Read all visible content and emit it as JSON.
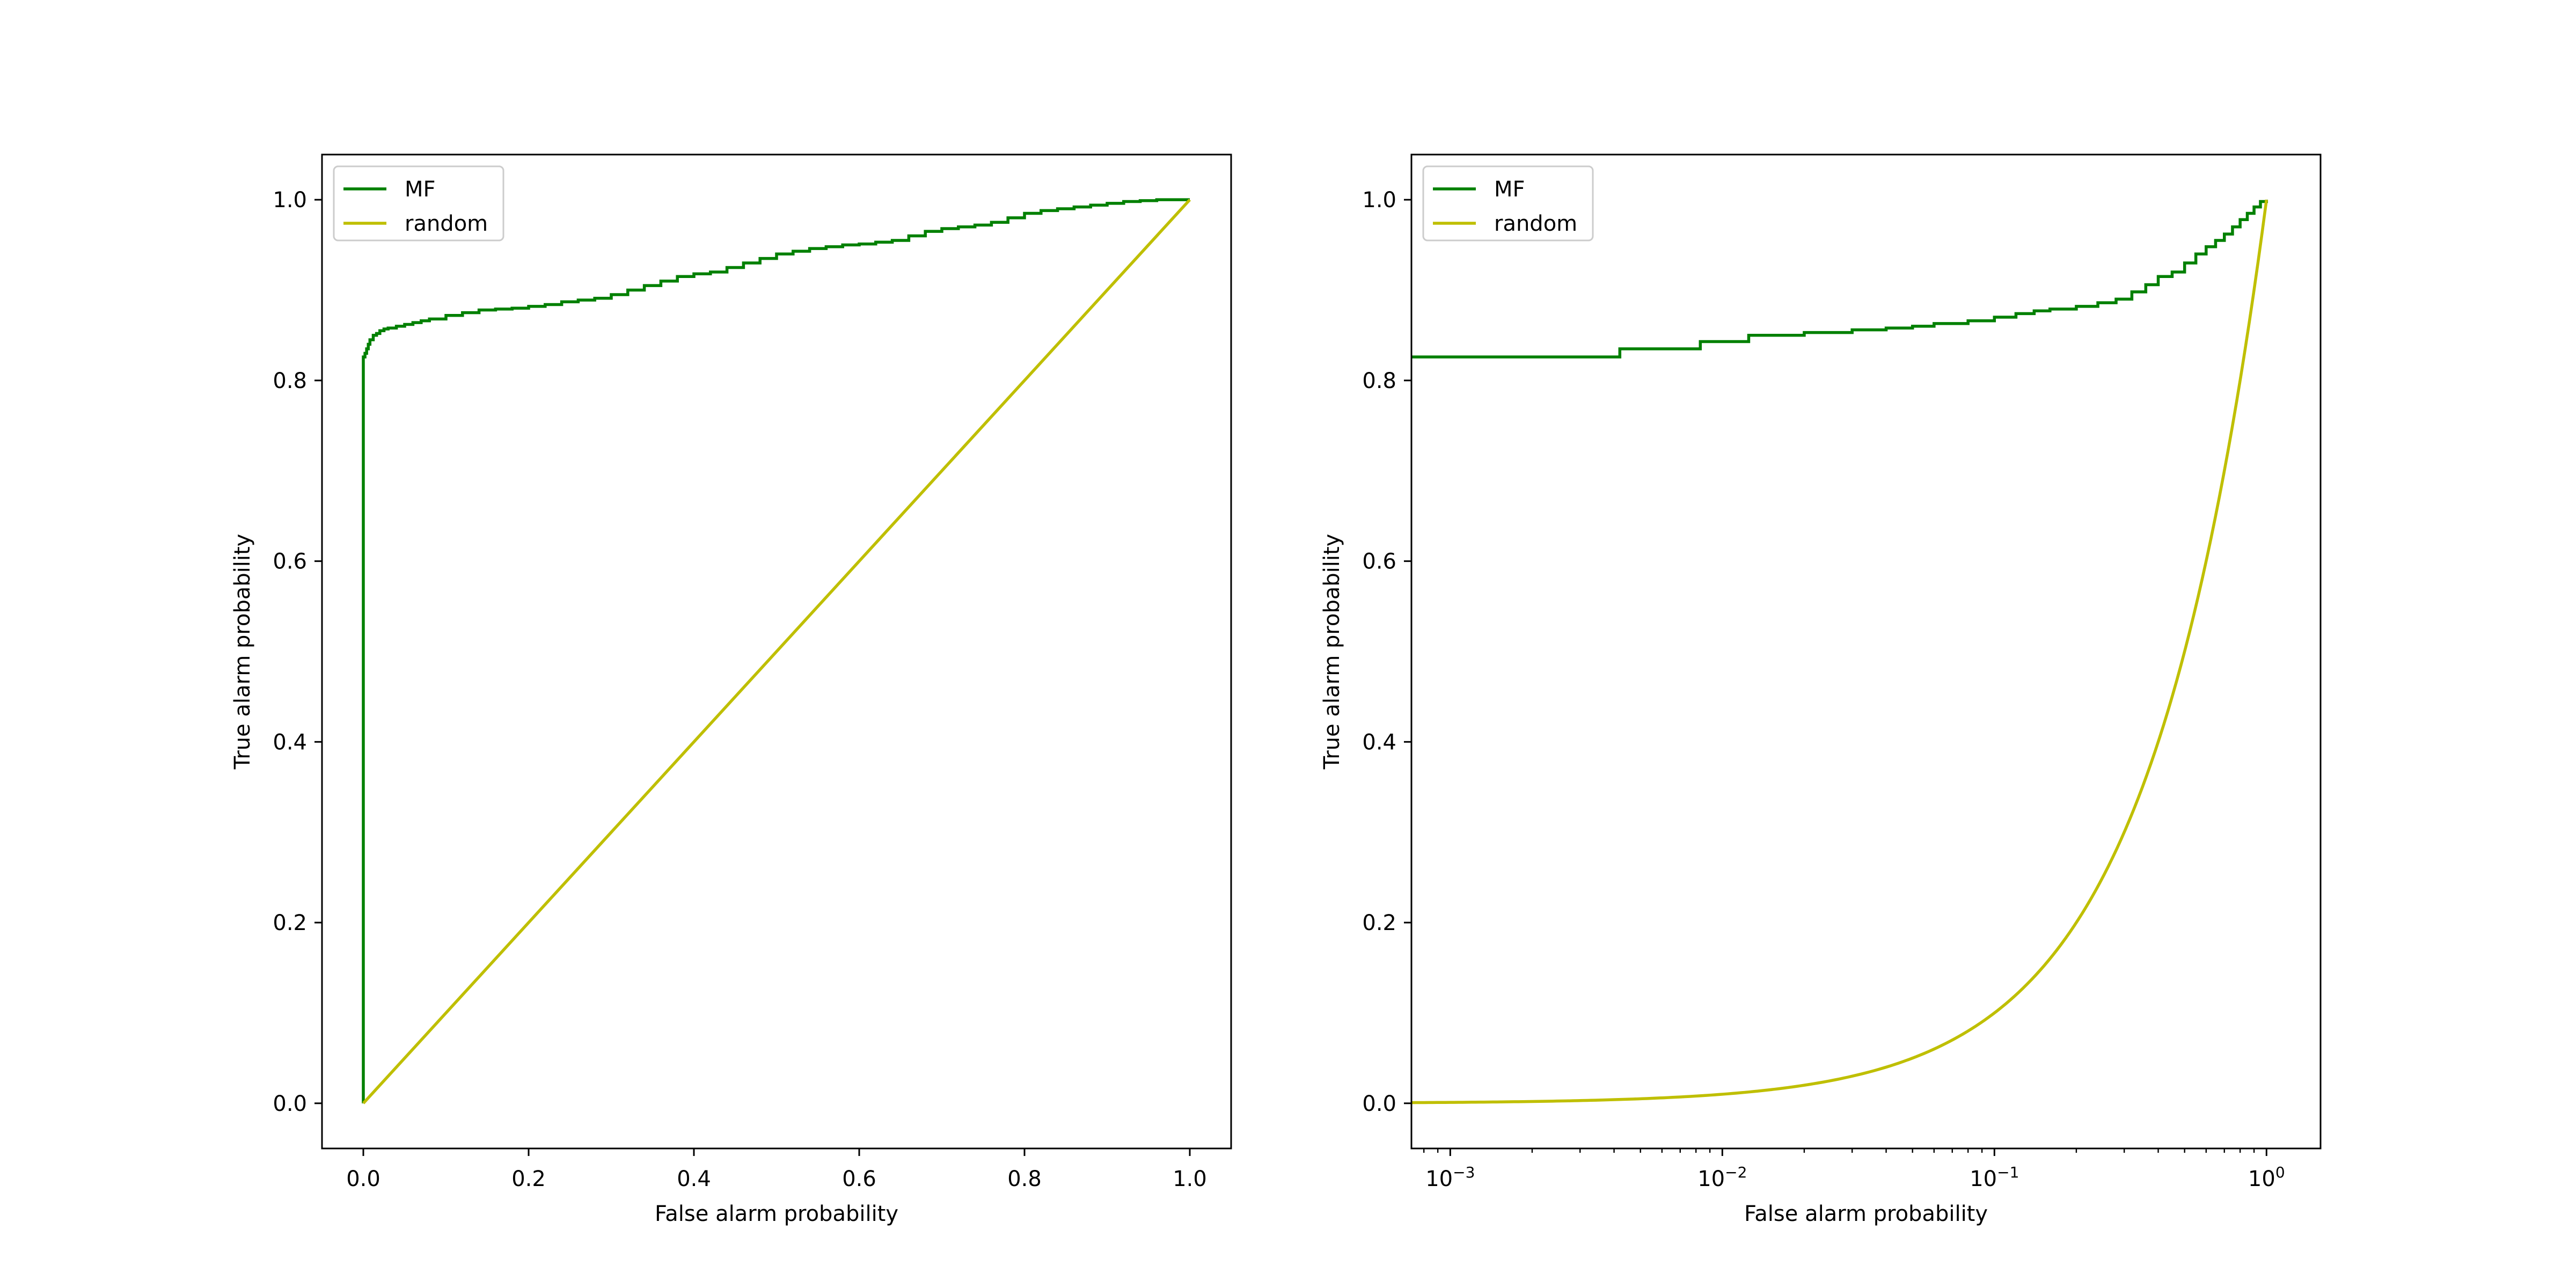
{
  "chart_data": [
    {
      "type": "line",
      "xscale": "linear",
      "xlabel": "False alarm probability",
      "ylabel": "True alarm probability",
      "xlim": [
        -0.05,
        1.05
      ],
      "ylim": [
        -0.05,
        1.05
      ],
      "xticks": [
        0.0,
        0.2,
        0.4,
        0.6,
        0.8,
        1.0
      ],
      "xtick_labels": [
        "0.0",
        "0.2",
        "0.4",
        "0.6",
        "0.8",
        "1.0"
      ],
      "yticks": [
        0.0,
        0.2,
        0.4,
        0.6,
        0.8,
        1.0
      ],
      "ytick_labels": [
        "0.0",
        "0.2",
        "0.4",
        "0.6",
        "0.8",
        "1.0"
      ],
      "legend_position": "upper-left",
      "series": [
        {
          "name": "MF",
          "color": "#008000",
          "step": true,
          "x": [
            0,
            0,
            0.002,
            0.004,
            0.006,
            0.008,
            0.012,
            0.016,
            0.02,
            0.025,
            0.03,
            0.04,
            0.05,
            0.06,
            0.07,
            0.08,
            0.1,
            0.12,
            0.14,
            0.16,
            0.18,
            0.2,
            0.22,
            0.24,
            0.26,
            0.28,
            0.3,
            0.32,
            0.34,
            0.36,
            0.38,
            0.4,
            0.42,
            0.44,
            0.46,
            0.48,
            0.5,
            0.52,
            0.54,
            0.56,
            0.58,
            0.6,
            0.62,
            0.64,
            0.66,
            0.68,
            0.7,
            0.72,
            0.74,
            0.76,
            0.78,
            0.8,
            0.82,
            0.84,
            0.86,
            0.88,
            0.9,
            0.92,
            0.94,
            0.96,
            0.98,
            1.0
          ],
          "y": [
            0,
            0.826,
            0.83,
            0.835,
            0.84,
            0.845,
            0.85,
            0.852,
            0.855,
            0.857,
            0.858,
            0.86,
            0.862,
            0.864,
            0.866,
            0.868,
            0.872,
            0.875,
            0.878,
            0.879,
            0.88,
            0.882,
            0.884,
            0.887,
            0.889,
            0.891,
            0.895,
            0.9,
            0.905,
            0.91,
            0.915,
            0.918,
            0.92,
            0.925,
            0.93,
            0.935,
            0.94,
            0.943,
            0.946,
            0.948,
            0.95,
            0.951,
            0.953,
            0.955,
            0.96,
            0.965,
            0.968,
            0.97,
            0.972,
            0.975,
            0.98,
            0.985,
            0.988,
            0.99,
            0.992,
            0.994,
            0.996,
            0.998,
            0.999,
            1.0,
            1.0,
            1.0
          ]
        },
        {
          "name": "random",
          "color": "#bfbf00",
          "step": false,
          "x": [
            0,
            1
          ],
          "y": [
            0,
            1
          ]
        }
      ]
    },
    {
      "type": "line",
      "xscale": "log",
      "xlabel": "False alarm probability",
      "ylabel": "True alarm probability",
      "xlim": [
        0.00072,
        1.58
      ],
      "ylim": [
        -0.05,
        1.05
      ],
      "xticks": [
        0.001,
        0.01,
        0.1,
        1
      ],
      "xtick_labels": [
        {
          "base": "10",
          "exp": "−3"
        },
        {
          "base": "10",
          "exp": "−2"
        },
        {
          "base": "10",
          "exp": "−1"
        },
        {
          "base": "10",
          "exp": "0"
        }
      ],
      "yticks": [
        0.0,
        0.2,
        0.4,
        0.6,
        0.8,
        1.0
      ],
      "ytick_labels": [
        "0.0",
        "0.2",
        "0.4",
        "0.6",
        "0.8",
        "1.0"
      ],
      "legend_position": "upper-left",
      "series": [
        {
          "name": "MF",
          "color": "#008000",
          "step": true,
          "x": [
            0.00072,
            0.0042,
            0.0083,
            0.0125,
            0.02,
            0.03,
            0.04,
            0.05,
            0.06,
            0.08,
            0.1,
            0.12,
            0.14,
            0.16,
            0.2,
            0.24,
            0.28,
            0.32,
            0.36,
            0.4,
            0.45,
            0.5,
            0.55,
            0.6,
            0.65,
            0.7,
            0.75,
            0.8,
            0.85,
            0.9,
            0.95,
            1.0
          ],
          "y": [
            0.826,
            0.835,
            0.843,
            0.85,
            0.853,
            0.856,
            0.858,
            0.86,
            0.863,
            0.866,
            0.87,
            0.874,
            0.877,
            0.879,
            0.882,
            0.886,
            0.89,
            0.898,
            0.906,
            0.915,
            0.92,
            0.93,
            0.94,
            0.948,
            0.955,
            0.962,
            0.97,
            0.978,
            0.985,
            0.992,
            0.998,
            1.0
          ]
        },
        {
          "name": "random",
          "color": "#bfbf00",
          "step": false,
          "function": "y = x",
          "x": [
            0.00072,
            1.0
          ],
          "y": [
            0.00072,
            1.0
          ]
        }
      ]
    }
  ]
}
